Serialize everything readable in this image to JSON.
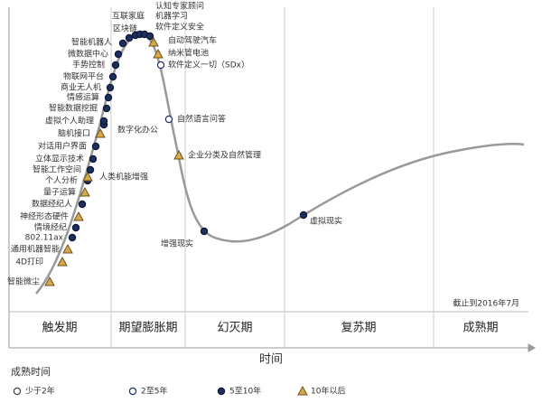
{
  "axis_label": "时间",
  "note": "截止到2016年7月",
  "phases": [
    "触发期",
    "期望膨胀期",
    "幻灭期",
    "复苏期",
    "成熟期"
  ],
  "legend": {
    "title": "成熟时间",
    "items": [
      "少于2年",
      "2至5年",
      "5至10年",
      "10年以后"
    ]
  },
  "points": [
    {
      "label": "智能微尘",
      "maturity": 3
    },
    {
      "label": "4D打印",
      "maturity": 3
    },
    {
      "label": "通用机器智能",
      "maturity": 3
    },
    {
      "label": "802.11ax",
      "maturity": 2
    },
    {
      "label": "情境经纪",
      "maturity": 2
    },
    {
      "label": "神经形态硬件",
      "maturity": 3
    },
    {
      "label": "数据经纪人",
      "maturity": 2
    },
    {
      "label": "量子运算",
      "maturity": 3
    },
    {
      "label": "个人分析",
      "maturity": 2
    },
    {
      "label": "人类机能增强",
      "maturity": 3
    },
    {
      "label": "智能工作空间",
      "maturity": 2
    },
    {
      "label": "立体显示技术",
      "maturity": 2
    },
    {
      "label": "对话用户界面",
      "maturity": 2
    },
    {
      "label": "数字化办公",
      "maturity": 2
    },
    {
      "label": "脑机接口",
      "maturity": 3
    },
    {
      "label": "虚拟个人助理",
      "maturity": 2
    },
    {
      "label": "智能数据挖掘",
      "maturity": 2
    },
    {
      "label": "情感运算",
      "maturity": 2
    },
    {
      "label": "商业无人机",
      "maturity": 2
    },
    {
      "label": "物联网平台",
      "maturity": 2
    },
    {
      "label": "手势控制",
      "maturity": 2
    },
    {
      "label": "微数据中心",
      "maturity": 2
    },
    {
      "label": "智能机器人",
      "maturity": 2
    },
    {
      "label": "区块链",
      "maturity": 2
    },
    {
      "label": "互联家庭",
      "maturity": 2
    },
    {
      "label": "认知专家顾问",
      "maturity": 2
    },
    {
      "label": "机器学习",
      "maturity": 2
    },
    {
      "label": "软件定义安全",
      "maturity": 2
    },
    {
      "label": "自动驾驶汽车",
      "maturity": 3
    },
    {
      "label": "纳米管电池",
      "maturity": 3
    },
    {
      "label": "软件定义一切（SDx）",
      "maturity": 1
    },
    {
      "label": "自然语言问答",
      "maturity": 1
    },
    {
      "label": "企业分类及自然管理",
      "maturity": 3
    },
    {
      "label": "增强现实",
      "maturity": 2
    },
    {
      "label": "虚拟现实",
      "maturity": 2
    }
  ]
}
